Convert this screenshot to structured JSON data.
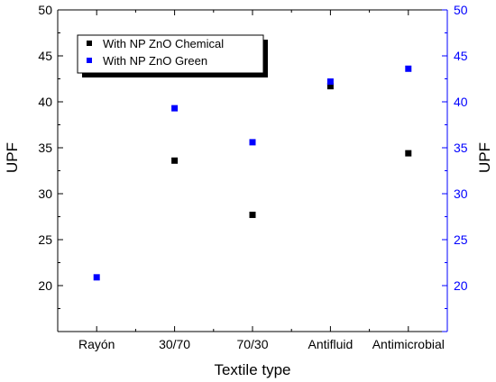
{
  "chart_data": {
    "type": "scatter",
    "title": "",
    "xlabel": "Textile type",
    "ylabel": "UPF",
    "ylabel_right": "UPF",
    "categories": [
      "Rayón",
      "30/70",
      "70/30",
      "Antifluid",
      "Antimicrobial"
    ],
    "ylim": [
      15,
      50
    ],
    "yticks": [
      20,
      25,
      30,
      35,
      40,
      45,
      50
    ],
    "right_axis_color": "#0000ff",
    "grid": false,
    "legend_position": "top-left",
    "series": [
      {
        "name": "With NP ZnO Chemical",
        "color": "#000000",
        "values": [
          null,
          33.6,
          27.7,
          41.7,
          34.4
        ]
      },
      {
        "name": "With NP ZnO Green",
        "color": "#0000ff",
        "values": [
          20.9,
          39.3,
          35.6,
          42.2,
          43.6
        ]
      }
    ]
  }
}
